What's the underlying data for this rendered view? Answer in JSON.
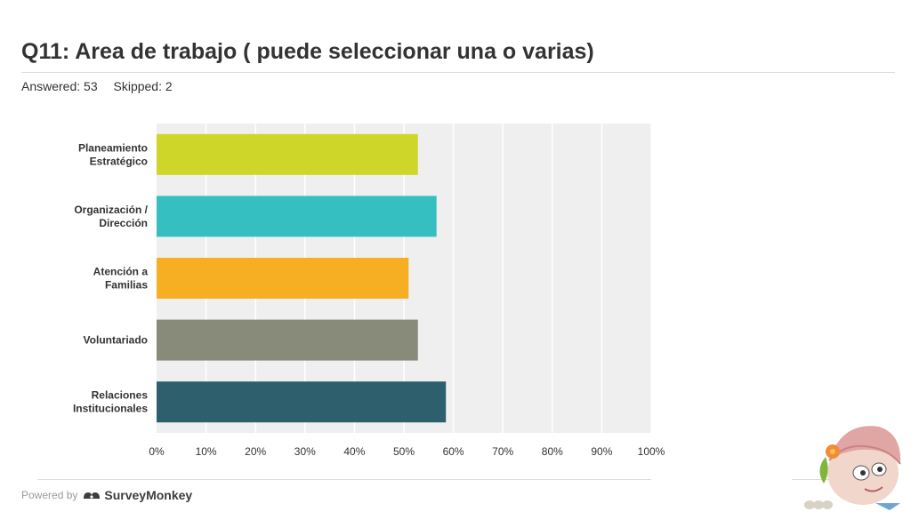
{
  "header": {
    "title": "Q11: Area de trabajo ( puede seleccionar una o varias)",
    "answered": "Answered: 53",
    "skipped": "Skipped: 2"
  },
  "footer": {
    "powered_by": "Powered by",
    "brand": "SurveyMonkey"
  },
  "chart_data": {
    "type": "bar",
    "orientation": "horizontal",
    "categories": [
      [
        "Planeamiento",
        "Estratégico"
      ],
      [
        "Organización /",
        "Dirección"
      ],
      [
        "Atención a",
        "Familias"
      ],
      [
        "Voluntariado"
      ],
      [
        "Relaciones",
        "Institucionales"
      ]
    ],
    "values": [
      52.83,
      56.6,
      50.94,
      52.83,
      58.49
    ],
    "colors": [
      "#ced62a",
      "#35bfc1",
      "#f6ae22",
      "#898b7a",
      "#2d5f6d"
    ],
    "xlim": [
      0,
      100
    ],
    "xticks": [
      "0%",
      "10%",
      "20%",
      "30%",
      "40%",
      "50%",
      "60%",
      "70%",
      "80%",
      "90%",
      "100%"
    ],
    "grid": true
  }
}
